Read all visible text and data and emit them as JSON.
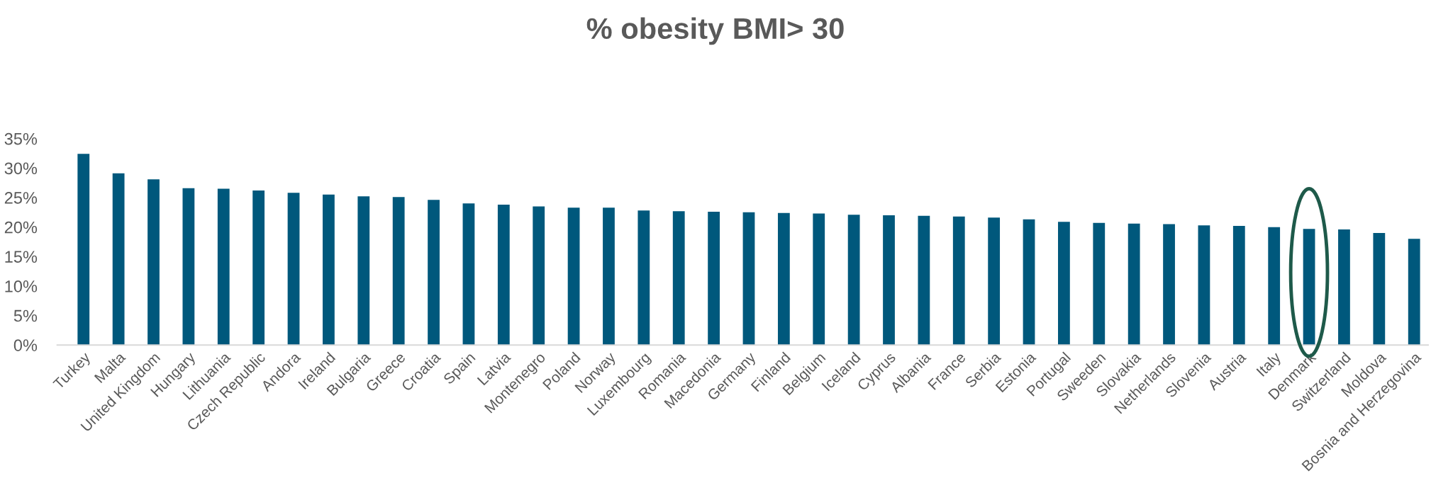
{
  "chart_data": {
    "type": "bar",
    "title": "% obesity BMI> 30",
    "categories": [
      "Turkey",
      "Malta",
      "United Kingdom",
      "Hungary",
      "Lithuania",
      "Czech Republic",
      "Andora",
      "Ireland",
      "Bulgaria",
      "Greece",
      "Croatia",
      "Spain",
      "Latvia",
      "Montenegro",
      "Poland",
      "Norway",
      "Luxembourg",
      "Romania",
      "Macedonia",
      "Germany",
      "Finland",
      "Belgium",
      "Iceland",
      "Cyprus",
      "Albania",
      "France",
      "Serbia",
      "Estonia",
      "Portugal",
      "Sweeden",
      "Slovakia",
      "Netherlands",
      "Slovenia",
      "Austria",
      "Italy",
      "Denmark",
      "Switzerland",
      "Moldova",
      "Bosnia and Herzegovina"
    ],
    "values": [
      32.4,
      29.1,
      28.1,
      26.6,
      26.5,
      26.2,
      25.8,
      25.5,
      25.2,
      25.1,
      24.6,
      24.0,
      23.8,
      23.5,
      23.3,
      23.3,
      22.8,
      22.7,
      22.6,
      22.5,
      22.4,
      22.3,
      22.1,
      22.0,
      21.9,
      21.8,
      21.6,
      21.3,
      20.9,
      20.7,
      20.6,
      20.5,
      20.3,
      20.2,
      20.0,
      19.7,
      19.6,
      19.0,
      18.0
    ],
    "color": "#00587c",
    "ylim": [
      0,
      35
    ],
    "yticks": [
      {
        "value": 0,
        "label": "0%"
      },
      {
        "value": 5,
        "label": "5%"
      },
      {
        "value": 10,
        "label": "10%"
      },
      {
        "value": 15,
        "label": "15%"
      },
      {
        "value": 20,
        "label": "20%"
      },
      {
        "value": 25,
        "label": "25%"
      },
      {
        "value": 30,
        "label": "30%"
      },
      {
        "value": 35,
        "label": "35%"
      }
    ]
  }
}
